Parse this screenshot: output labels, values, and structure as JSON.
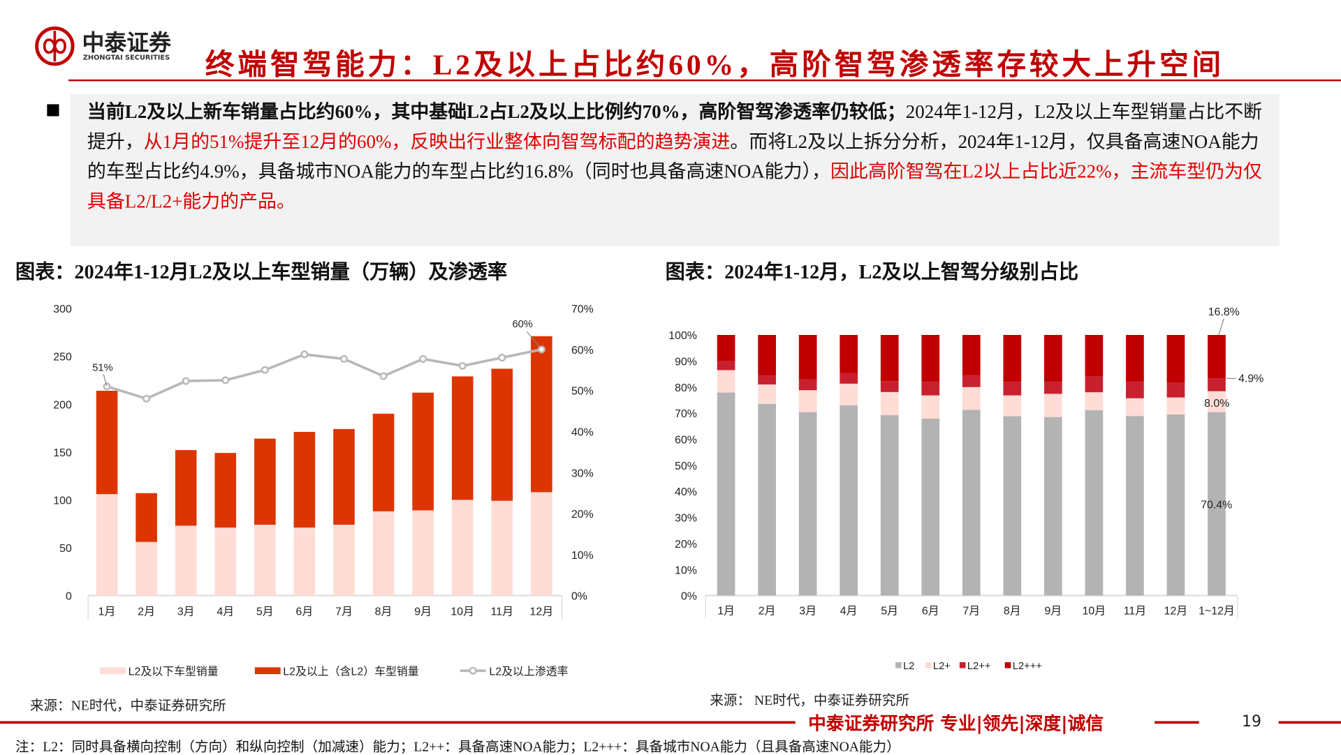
{
  "header": {
    "logo_text": "中泰证券",
    "logo_subtext": "ZHONGTAI SECURITIES",
    "title": "终端智驾能力：L2及以上占比约60%，高阶智驾渗透率存较大上升空间"
  },
  "summary": {
    "p1_bold": "当前L2及以上新车销量占比约60%，其中基础L2占L2及以上比例约70%，高阶智驾渗透率仍较低；",
    "p2": "2024年1-12月，L2及以上车型销量占比不断提升，",
    "p3_red": "从1月的51%提升至12月的60%，反映出行业整体向智驾标配的趋势演进",
    "p4": "。而将L2及以上拆分分析，2024年1-12月，仅具备高速NOA能力的车型占比约4.9%，具备城市NOA能力的车型占比约16.8%（同时也具备高速NOA能力），",
    "p5_red": "因此高阶智驾在L2以上占比近22%，主流车型仍为仅具备L2/L2+能力的产品。"
  },
  "colors": {
    "brand_red": "#C00000",
    "left_lower": "#FFDCD6",
    "left_upper": "#DD3500",
    "line": "#B8B8B8",
    "L2": "#B3B3B3",
    "L2p": "#FFDCD6",
    "L2pp": "#C8202F",
    "L2ppp": "#C00000"
  },
  "chart_data": [
    {
      "type": "bar",
      "title": "图表：2024年1-12月L2及以上车型销量（万辆）及渗透率",
      "categories": [
        "1月",
        "2月",
        "3月",
        "4月",
        "5月",
        "6月",
        "7月",
        "8月",
        "9月",
        "10月",
        "11月",
        "12月"
      ],
      "stacked": true,
      "ylim": [
        0,
        300
      ],
      "yticks": [
        "0",
        "50",
        "100",
        "150",
        "200",
        "250",
        "300"
      ],
      "y2lim": [
        0,
        70
      ],
      "y2ticks": [
        "0%",
        "10%",
        "20%",
        "30%",
        "40%",
        "50%",
        "60%",
        "70%"
      ],
      "series": [
        {
          "name": "L2及以下车型销量",
          "type": "bar",
          "values": [
            106,
            56,
            73,
            71,
            74,
            71,
            74,
            88,
            89,
            100,
            99,
            108
          ]
        },
        {
          "name": "L2及以上（含L2）车型销量",
          "type": "bar",
          "values": [
            108,
            51,
            79,
            78,
            90,
            100,
            100,
            102,
            123,
            129,
            138,
            163
          ]
        },
        {
          "name": "L2及以上渗透率",
          "type": "line",
          "axis": "right",
          "values": [
            51,
            48,
            52.3,
            52.5,
            55,
            58.8,
            57.7,
            53.5,
            57.7,
            56,
            58,
            60
          ]
        }
      ],
      "annotations": [
        {
          "category": "1月",
          "text": "51%"
        },
        {
          "category": "12月",
          "text": "60%"
        }
      ],
      "legend": "bottom",
      "source": "来源：NE时代，中泰证券研究所"
    },
    {
      "type": "bar",
      "title": "图表：2024年1-12月，L2及以上智驾分级别占比",
      "categories": [
        "1月",
        "2月",
        "3月",
        "4月",
        "5月",
        "6月",
        "7月",
        "8月",
        "9月",
        "10月",
        "11月",
        "12月",
        "1~12月"
      ],
      "stacked": true,
      "ylim": [
        0,
        100
      ],
      "yticks": [
        "0%",
        "10%",
        "20%",
        "30%",
        "40%",
        "50%",
        "60%",
        "70%",
        "80%",
        "90%",
        "100%"
      ],
      "series": [
        {
          "name": "L2",
          "values": [
            77.9,
            73.5,
            70.4,
            73.0,
            69.2,
            67.9,
            71.3,
            68.8,
            68.5,
            71.1,
            68.9,
            69.5,
            70.4
          ]
        },
        {
          "name": "L2+",
          "values": [
            8.6,
            7.5,
            8.4,
            8.3,
            8.9,
            8.9,
            8.7,
            8.0,
            8.9,
            6.9,
            6.8,
            6.5,
            8.0
          ]
        },
        {
          "name": "L2++",
          "values": [
            3.6,
            3.6,
            4.1,
            4.0,
            4.2,
            5.2,
            4.5,
            5.2,
            4.6,
            6.0,
            6.3,
            5.6,
            4.9
          ]
        },
        {
          "name": "L2+++",
          "values": [
            9.9,
            15.4,
            17.1,
            14.7,
            17.7,
            18.0,
            15.5,
            18.0,
            18.0,
            16.0,
            18.0,
            18.4,
            16.8
          ]
        }
      ],
      "data_labels": [
        "16.8%",
        "4.9%",
        "8.0%",
        "70.4%"
      ],
      "legend": "bottom",
      "source": "来源： NE时代，中泰证券研究所"
    }
  ],
  "footer": {
    "slogan": "中泰证券研究所 专业|领先|深度|诚信",
    "page": "19",
    "note": "注：L2：同时具备横向控制（方向）和纵向控制（加减速）能力；L2++：具备高速NOA能力；L2+++：具备城市NOA能力（且具备高速NOA能力）"
  }
}
